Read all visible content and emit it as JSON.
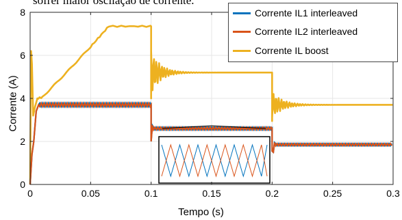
{
  "caption": "sofrer maior oscilação de corrente.",
  "colors": {
    "il1": "#0072BD",
    "il2": "#D95319",
    "boost": "#EDB120",
    "grid": "#e6e6e6",
    "axis": "#262626"
  },
  "chart_data": {
    "type": "line",
    "title": "",
    "xlabel": "Tempo (s)",
    "ylabel": "Corrente (A)",
    "xlim": [
      0,
      0.3
    ],
    "ylim": [
      0,
      8
    ],
    "xticks": [
      0,
      0.05,
      0.1,
      0.15,
      0.2,
      0.25,
      0.3
    ],
    "xtick_labels": [
      "0",
      "0.05",
      "0.1",
      "0.15",
      "0.2",
      "0.25",
      "0.3"
    ],
    "yticks": [
      0,
      2,
      4,
      6,
      8
    ],
    "ytick_labels": [
      "0",
      "2",
      "4",
      "6",
      "8"
    ],
    "grid": true,
    "legend_position": "top-right",
    "series": [
      {
        "name": "Corrente IL1 interleaved",
        "color_key": "il1",
        "x": [
          0,
          0.002,
          0.004,
          0.006,
          0.008,
          0.1,
          0.1,
          0.2,
          0.2,
          0.3
        ],
        "y": [
          0,
          1.4,
          3.3,
          3.7,
          3.7,
          3.7,
          2.6,
          2.6,
          1.85,
          1.85
        ]
      },
      {
        "name": "Corrente IL2 interleaved",
        "color_key": "il2",
        "x": [
          0,
          0.002,
          0.004,
          0.006,
          0.008,
          0.1,
          0.1,
          0.2,
          0.2,
          0.3
        ],
        "y": [
          0,
          1.4,
          3.3,
          3.7,
          3.7,
          3.7,
          2.6,
          2.6,
          1.85,
          1.85
        ]
      },
      {
        "name": "Corrente IL boost",
        "color_key": "boost",
        "x": [
          0,
          0.0015,
          0.003,
          0.005,
          0.01,
          0.03,
          0.05,
          0.065,
          0.1,
          0.1,
          0.12,
          0.2,
          0.2,
          0.22,
          0.3
        ],
        "y": [
          0,
          6.2,
          3.5,
          3.9,
          4.05,
          5.2,
          6.4,
          7.35,
          7.35,
          6.2,
          5.2,
          5.2,
          3.0,
          3.7,
          3.7
        ]
      }
    ]
  }
}
